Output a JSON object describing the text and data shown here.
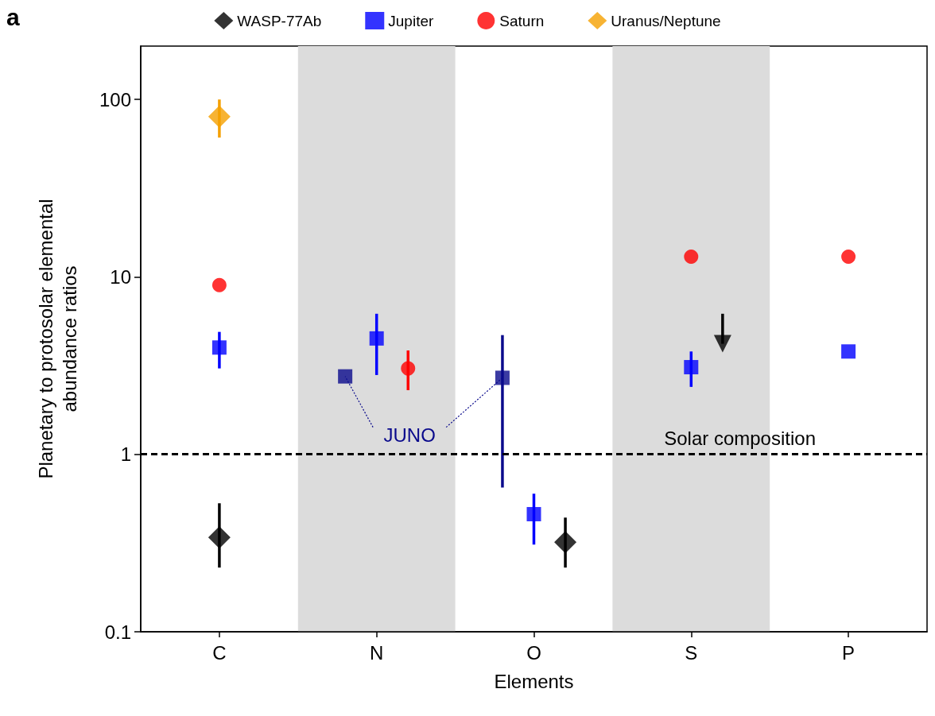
{
  "chart_data": {
    "type": "scatter",
    "xlabel": "Elements",
    "ylabel": "Planetary to protosolar elemental abundance ratios",
    "categories": [
      "C",
      "N",
      "O",
      "S",
      "P"
    ],
    "ylim": [
      0.1,
      200
    ],
    "yticks": [
      0.1,
      1,
      10,
      100
    ],
    "log": true,
    "grid": false,
    "legend": "top",
    "series": [
      {
        "name": "WASP-77Ab",
        "color": "#000000",
        "marker": "diamond",
        "values": [
          0.34,
          null,
          0.32,
          null,
          null
        ],
        "errors": [
          [
            0.23,
            0.53
          ],
          null,
          [
            0.23,
            0.44
          ],
          null,
          null
        ]
      },
      {
        "name": "Jupiter",
        "color": "#0000ff",
        "marker": "square",
        "values": [
          4.0,
          4.5,
          0.46,
          3.1,
          3.8
        ],
        "errors": [
          [
            3.05,
            4.9
          ],
          [
            2.8,
            6.2
          ],
          [
            0.31,
            0.6
          ],
          [
            2.4,
            3.8
          ],
          null
        ]
      },
      {
        "name": "Saturn",
        "color": "#ff0000",
        "marker": "circle",
        "values": [
          9.0,
          3.05,
          null,
          13,
          13
        ],
        "errors": [
          null,
          [
            2.3,
            3.85
          ],
          null,
          null,
          null
        ]
      },
      {
        "name": "Uranus/Neptune",
        "color": "#f5a000",
        "marker": "diamond",
        "values": [
          80,
          null,
          null,
          null,
          null
        ],
        "errors": [
          [
            61,
            100
          ],
          null,
          null,
          null,
          null
        ]
      },
      {
        "color": "#0a0a8c",
        "marker": "square",
        "values": [
          null,
          2.75,
          2.7,
          null,
          null
        ],
        "errors": [
          null,
          null,
          [
            0.65,
            4.7
          ],
          null,
          null
        ]
      },
      {
        "color": "#000000",
        "marker": "triangle",
        "values": [
          null,
          null,
          null,
          4.2,
          null
        ],
        "errors": [
          null,
          null,
          null,
          [
            4.2,
            6.2
          ],
          null
        ]
      }
    ],
    "ref_lines": [
      {
        "axis": "y",
        "value": 1,
        "label": "Solar composition",
        "color": "#000000",
        "line_style": "dashed"
      }
    ],
    "bands": [
      {
        "axis": "x",
        "from": "N",
        "to": "N",
        "color": "#dcdcdc"
      },
      {
        "axis": "x",
        "from": "S",
        "to": "S",
        "color": "#dcdcdc"
      }
    ],
    "annotations": [
      "a",
      {
        "text": "JUNO",
        "x": "N",
        "y": 2.75
      }
    ]
  }
}
